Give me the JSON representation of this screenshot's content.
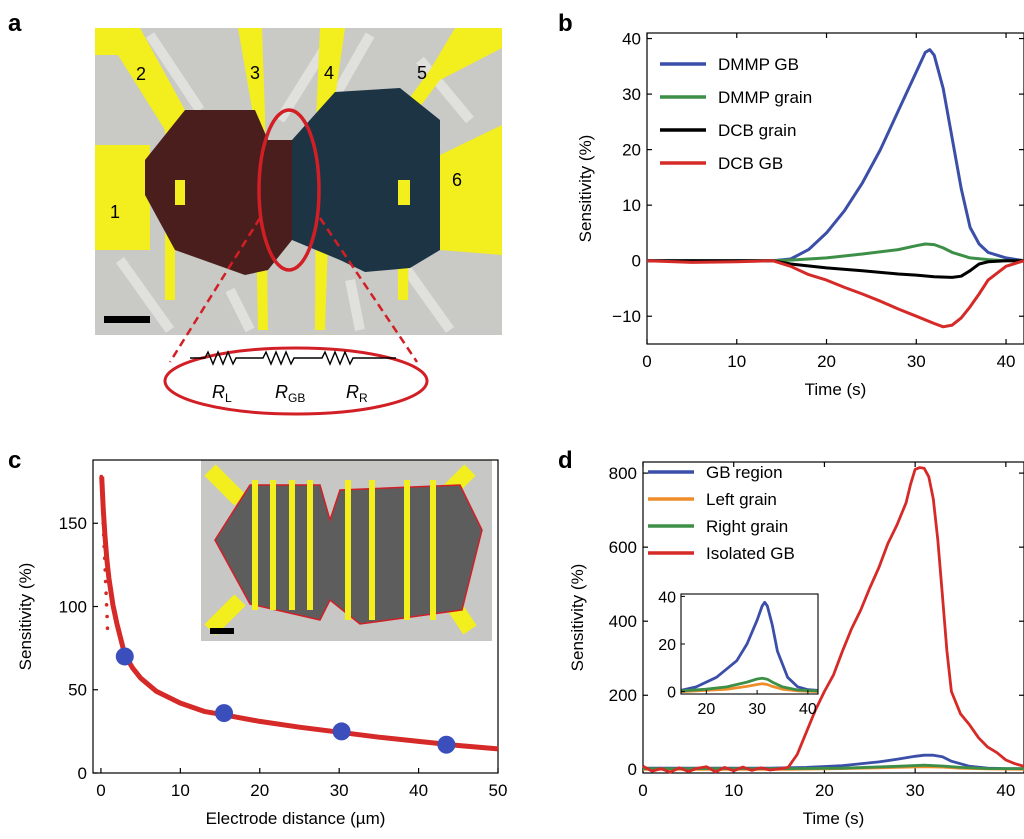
{
  "figure": {
    "panel_letters": [
      "a",
      "b",
      "c",
      "d"
    ]
  },
  "panel_a": {
    "electrode_labels": [
      "1",
      "2",
      "3",
      "4",
      "5",
      "6"
    ],
    "circuit_labels": [
      {
        "main": "R",
        "sub": "L"
      },
      {
        "main": "R",
        "sub": "GB"
      },
      {
        "main": "R",
        "sub": "R"
      }
    ],
    "colors": {
      "electrode": "#f3ee1e",
      "left_grain": "#4a1e1c",
      "right_grain": "#1d3444",
      "highlight": "#d21f26"
    }
  },
  "chart_data": [
    {
      "id": "b",
      "type": "line",
      "xlabel": "Time (s)",
      "ylabel": "Sensitivity (%)",
      "xlim": [
        0,
        42
      ],
      "ylim": [
        -15,
        41
      ],
      "xticks": [
        0,
        10,
        20,
        30,
        40
      ],
      "yticks": [
        -10,
        0,
        10,
        20,
        30,
        40
      ],
      "xtick_labels": [
        "0",
        "10",
        "20",
        "30",
        "40"
      ],
      "ytick_labels": [
        "−10",
        "0",
        "10",
        "20",
        "30",
        "40"
      ],
      "legend_position": "top-left",
      "series": [
        {
          "name": "DMMP GB",
          "color": "#3b4fa8",
          "x": [
            0,
            10,
            14,
            16,
            18,
            20,
            22,
            24,
            26,
            28,
            30,
            31,
            31.5,
            32,
            33,
            34,
            35,
            36,
            37,
            38,
            40,
            42
          ],
          "y": [
            0,
            0,
            0,
            0.3,
            2,
            5,
            9,
            14,
            20,
            27,
            34,
            37.5,
            38,
            37,
            31,
            22,
            13,
            6,
            3,
            1.5,
            0.5,
            0
          ]
        },
        {
          "name": "DMMP grain",
          "color": "#3d8f48",
          "x": [
            0,
            14,
            16,
            20,
            24,
            28,
            30,
            31,
            32,
            33,
            34,
            36,
            38,
            40,
            42
          ],
          "y": [
            0,
            0,
            0.1,
            0.5,
            1.2,
            2,
            2.7,
            3,
            2.9,
            2.3,
            1.5,
            0.5,
            0.2,
            0,
            0
          ]
        },
        {
          "name": "DCB grain",
          "color": "#000000",
          "x": [
            0,
            10,
            14,
            16,
            20,
            24,
            28,
            30,
            32,
            34,
            35,
            36,
            37,
            38,
            40,
            42
          ],
          "y": [
            0,
            0,
            0,
            -0.6,
            -1.3,
            -1.8,
            -2.4,
            -2.6,
            -2.9,
            -3,
            -2.8,
            -1.8,
            -0.6,
            -0.2,
            0,
            0
          ]
        },
        {
          "name": "DCB GB",
          "color": "#d52a27",
          "x": [
            0,
            5,
            10,
            14,
            16,
            18,
            20,
            22,
            24,
            26,
            28,
            30,
            32,
            33,
            34,
            35,
            36,
            37,
            38,
            40,
            42
          ],
          "y": [
            0,
            -0.3,
            -0.2,
            0,
            -1,
            -2.5,
            -3.5,
            -4.8,
            -6,
            -7.3,
            -8.7,
            -10,
            -11.3,
            -11.9,
            -11.6,
            -10.3,
            -8.3,
            -6,
            -3.5,
            -1,
            0
          ]
        }
      ]
    },
    {
      "id": "c",
      "type": "scatter",
      "xlabel": "Electrode distance (µm)",
      "ylabel": "Sensitivity (%)",
      "xlim": [
        -1,
        50
      ],
      "ylim": [
        0,
        188
      ],
      "xticks": [
        0,
        10,
        20,
        30,
        40,
        50
      ],
      "yticks": [
        0,
        50,
        100,
        150
      ],
      "xtick_labels": [
        "0",
        "10",
        "20",
        "30",
        "40",
        "50"
      ],
      "ytick_labels": [
        "0",
        "50",
        "100",
        "150"
      ],
      "fit_color": "#d52a27",
      "fit_curve": {
        "x": [
          0.1,
          0.2,
          0.3,
          0.5,
          0.75,
          1,
          1.5,
          2,
          3,
          4,
          5,
          7,
          10,
          13,
          16,
          20,
          25,
          30,
          35,
          40,
          45,
          50
        ],
        "y": [
          178,
          168,
          158,
          143,
          128,
          117,
          101,
          90,
          71,
          63,
          57,
          49,
          42,
          37,
          34.5,
          31,
          27.5,
          24.5,
          21.5,
          19,
          16.5,
          14.5
        ]
      },
      "points_color": "#3b4fbc",
      "points": {
        "x": [
          3,
          15.5,
          30.3,
          43.5
        ],
        "y": [
          70,
          36,
          25,
          17
        ]
      }
    },
    {
      "id": "d",
      "type": "line",
      "xlabel": "Time (s)",
      "ylabel": "Sensitivity (%)",
      "xlim": [
        0,
        42
      ],
      "ylim": [
        -10,
        830
      ],
      "xticks": [
        0,
        10,
        20,
        30,
        40
      ],
      "yticks": [
        0,
        200,
        400,
        600,
        800
      ],
      "xtick_labels": [
        "0",
        "10",
        "20",
        "30",
        "40"
      ],
      "ytick_labels": [
        "0",
        "200",
        "400",
        "600",
        "800"
      ],
      "legend_position": "top-left",
      "series": [
        {
          "name": "GB region",
          "color": "#3b4fa8",
          "x": [
            0,
            14,
            18,
            22,
            26,
            28,
            30,
            31,
            32,
            33,
            34,
            36,
            38,
            40,
            42
          ],
          "y": [
            3,
            3,
            5,
            10,
            20,
            27,
            35,
            38,
            38,
            34,
            22,
            8,
            3,
            2,
            2
          ]
        },
        {
          "name": "Left grain",
          "color": "#ee8e2b",
          "x": [
            0,
            16,
            22,
            28,
            31,
            33,
            35,
            38,
            42
          ],
          "y": [
            0,
            0,
            2,
            5,
            7,
            6,
            3,
            1,
            0
          ]
        },
        {
          "name": "Right grain",
          "color": "#3d8f48",
          "x": [
            0,
            16,
            22,
            28,
            31,
            33,
            35,
            38,
            42
          ],
          "y": [
            2,
            2,
            3,
            8,
            11,
            9,
            5,
            2,
            2
          ]
        },
        {
          "name": "Isolated GB",
          "color": "#d52a27",
          "x": [
            0,
            1,
            2,
            3,
            4,
            5,
            6,
            7,
            8,
            9,
            10,
            11,
            12,
            13,
            14,
            15,
            16,
            17,
            18,
            19,
            20,
            21,
            22,
            23,
            24,
            25,
            26,
            27,
            28,
            29,
            29.5,
            30,
            30.5,
            31,
            31.5,
            32,
            32.5,
            33,
            33.5,
            34,
            35,
            36,
            37,
            38,
            39,
            40,
            41,
            42
          ],
          "y": [
            8,
            -5,
            2,
            -8,
            4,
            -6,
            3,
            7,
            -7,
            5,
            -4,
            6,
            -3,
            4,
            -2,
            1,
            5,
            40,
            100,
            160,
            210,
            255,
            320,
            380,
            430,
            490,
            545,
            610,
            660,
            720,
            770,
            810,
            815,
            813,
            790,
            730,
            620,
            470,
            320,
            210,
            150,
            120,
            85,
            60,
            45,
            25,
            15,
            8
          ]
        }
      ],
      "inset": {
        "xlim": [
          15,
          42
        ],
        "ylim": [
          -1,
          41
        ],
        "xticks": [
          20,
          30,
          40
        ],
        "yticks": [
          0,
          20,
          40
        ],
        "xtick_labels": [
          "20",
          "30",
          "40"
        ],
        "ytick_labels": [
          "0",
          "20",
          "40"
        ],
        "series": [
          {
            "name": "GB region",
            "color": "#3b4fa8",
            "x": [
              15,
              18,
              22,
              26,
              28,
              30,
              31,
              31.5,
              32,
              33,
              34,
              36,
              38,
              40,
              42
            ],
            "y": [
              0.5,
              2,
              6,
              13,
              20,
              30,
              36,
              37.5,
              36,
              28,
              17,
              6,
              2,
              0.8,
              0.5
            ]
          },
          {
            "name": "Left grain",
            "color": "#ee8e2b",
            "x": [
              15,
              20,
              24,
              28,
              30,
              31,
              32,
              33,
              35,
              38,
              42
            ],
            "y": [
              0,
              0.5,
              1,
              2.2,
              3,
              3.3,
              3,
              2.2,
              1,
              0.3,
              0
            ]
          },
          {
            "name": "Right grain",
            "color": "#3d8f48",
            "x": [
              15,
              20,
              24,
              28,
              30,
              31,
              32,
              33,
              35,
              38,
              42
            ],
            "y": [
              0.3,
              1,
              2,
              4,
              5.3,
              5.6,
              5.2,
              4,
              2,
              0.7,
              0.3
            ]
          }
        ]
      }
    }
  ]
}
